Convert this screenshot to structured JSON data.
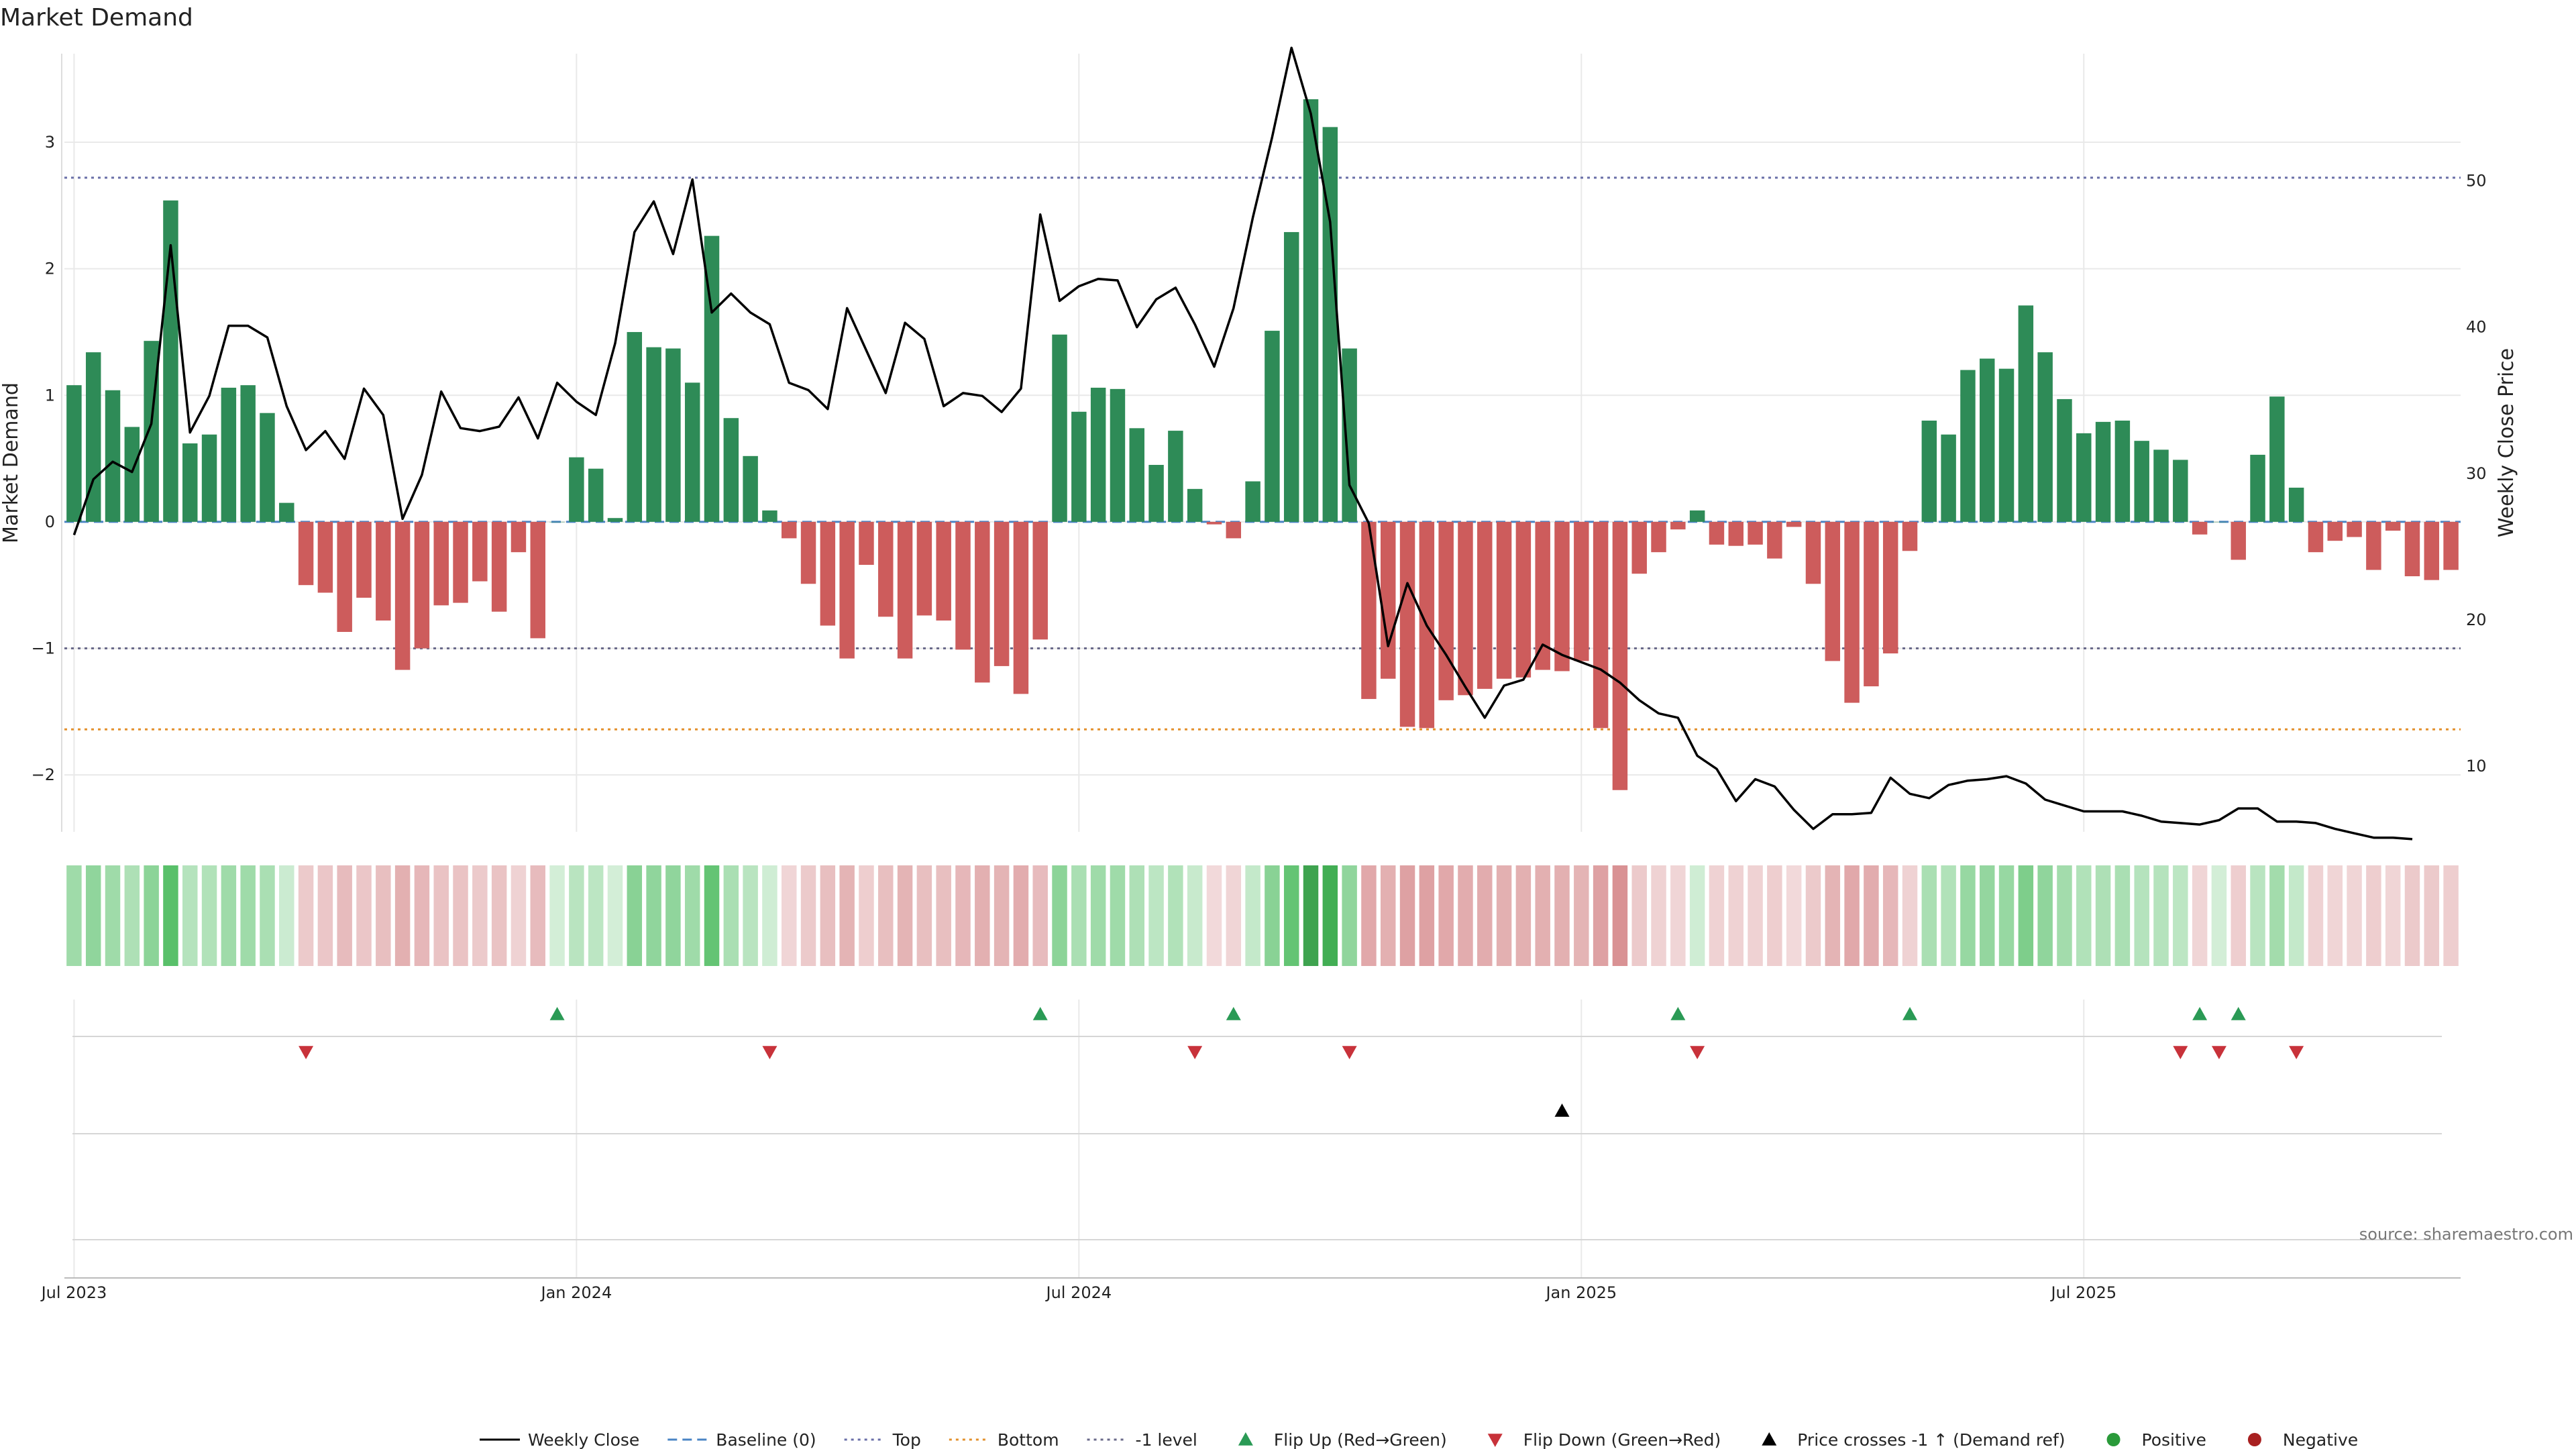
{
  "chart_data": {
    "type": "bar",
    "title": "Market Demand",
    "ylabel": "Market Demand",
    "y2label": "Weekly Close Price",
    "ylim": [
      -2.45,
      3.7
    ],
    "y2lim": [
      5.5,
      58.7
    ],
    "yticks": [
      {
        "v": -2,
        "t": "−2"
      },
      {
        "v": -1,
        "t": "−1"
      },
      {
        "v": 0,
        "t": "0"
      },
      {
        "v": 1,
        "t": "1"
      },
      {
        "v": 2,
        "t": "2"
      },
      {
        "v": 3,
        "t": "3"
      }
    ],
    "y2ticks": [
      {
        "v": 10,
        "t": "10"
      },
      {
        "v": 20,
        "t": "20"
      },
      {
        "v": 30,
        "t": "30"
      },
      {
        "v": 40,
        "t": "40"
      },
      {
        "v": 50,
        "t": "50"
      }
    ],
    "xticks": [
      {
        "i": 0.5,
        "t": "Jul 2023"
      },
      {
        "i": 26.5,
        "t": "Jan 2024"
      },
      {
        "i": 52.5,
        "t": "Jul 2024"
      },
      {
        "i": 78.5,
        "t": "Jan 2025"
      },
      {
        "i": 104.5,
        "t": "Jul 2025"
      }
    ],
    "reference_lines": {
      "top": 2.72,
      "bottom": -1.64,
      "minus_one": -1,
      "baseline": 0
    },
    "series": [
      {
        "name": "Market Demand",
        "values": [
          1.08,
          1.34,
          1.04,
          0.75,
          1.43,
          2.54,
          0.62,
          0.69,
          1.06,
          1.08,
          0.86,
          0.15,
          -0.5,
          -0.56,
          -0.87,
          -0.6,
          -0.78,
          -1.17,
          -1.0,
          -0.66,
          -0.64,
          -0.47,
          -0.71,
          -0.24,
          -0.92,
          0.0,
          0.51,
          0.42,
          0.03,
          1.5,
          1.38,
          1.37,
          1.1,
          2.26,
          0.82,
          0.52,
          0.09,
          -0.13,
          -0.49,
          -0.82,
          -1.08,
          -0.34,
          -0.75,
          -1.08,
          -0.74,
          -0.78,
          -1.01,
          -1.27,
          -1.14,
          -1.36,
          -0.93,
          1.48,
          0.87,
          1.06,
          1.05,
          0.74,
          0.45,
          0.72,
          0.26,
          -0.02,
          -0.13,
          0.32,
          1.51,
          2.29,
          3.34,
          3.12,
          1.37,
          -1.4,
          -1.24,
          -1.62,
          -1.63,
          -1.41,
          -1.37,
          -1.32,
          -1.24,
          -1.23,
          -1.17,
          -1.18,
          -1.1,
          -1.63,
          -2.12,
          -0.41,
          -0.24,
          -0.06,
          0.09,
          -0.18,
          -0.19,
          -0.18,
          -0.29,
          -0.04,
          -0.49,
          -1.1,
          -1.43,
          -1.3,
          -1.04,
          -0.23,
          0.8,
          0.69,
          1.2,
          1.29,
          1.21,
          1.71,
          1.34,
          0.97,
          0.7,
          0.79,
          0.8,
          0.64,
          0.57,
          0.49,
          -0.1,
          0.0,
          -0.3,
          0.53,
          0.99,
          0.27,
          -0.24,
          -0.15,
          -0.12,
          -0.38,
          -0.07,
          -0.43,
          -0.46,
          -0.38
        ]
      },
      {
        "name": "Weekly Close",
        "values": [
          25.8,
          29.6,
          30.8,
          30.1,
          33.4,
          45.6,
          32.8,
          35.3,
          40.1,
          40.1,
          39.3,
          34.6,
          31.6,
          32.9,
          31.0,
          35.8,
          34.0,
          26.9,
          29.9,
          35.6,
          33.1,
          32.9,
          33.2,
          35.2,
          32.4,
          36.2,
          34.9,
          34.0,
          38.9,
          46.5,
          48.6,
          45.0,
          50.1,
          41.0,
          42.3,
          41.0,
          40.2,
          36.2,
          35.7,
          34.4,
          41.3,
          38.4,
          35.5,
          40.3,
          39.2,
          34.6,
          35.5,
          35.3,
          34.2,
          35.8,
          47.7,
          41.8,
          42.8,
          43.3,
          43.2,
          40.0,
          41.9,
          42.7,
          40.2,
          37.3,
          41.3,
          47.5,
          53.0,
          59.1,
          54.6,
          47.2,
          29.2,
          26.6,
          18.2,
          22.5,
          19.6,
          17.6,
          15.4,
          13.3,
          15.5,
          15.9,
          18.3,
          17.6,
          17.1,
          16.6,
          15.7,
          14.5,
          13.6,
          13.3,
          10.7,
          9.8,
          7.6,
          9.1,
          8.6,
          7.0,
          5.7,
          6.7,
          6.7,
          6.8,
          9.2,
          8.1,
          7.8,
          8.7,
          9.0,
          9.1,
          9.3,
          8.8,
          7.7,
          7.3,
          6.9,
          6.9,
          6.9,
          6.6,
          6.2,
          6.1,
          6.0,
          6.3,
          7.1,
          7.1,
          6.2,
          6.2,
          6.1,
          5.7,
          5.4,
          5.1,
          5.1,
          5.0
        ]
      }
    ],
    "flip_up": [
      25,
      50,
      60,
      83,
      95,
      110,
      112
    ],
    "flip_down": [
      12,
      36,
      58,
      66,
      84,
      109,
      111,
      115
    ],
    "price_cross": [
      77
    ],
    "source": "source: sharemaestro.com",
    "legend": [
      {
        "label": "Weekly Close",
        "kind": "line",
        "color": "#000000"
      },
      {
        "label": "Baseline (0)",
        "kind": "dash",
        "color": "#4a84c4"
      },
      {
        "label": "Top",
        "kind": "dot",
        "color": "#6a6fa8"
      },
      {
        "label": "Bottom",
        "kind": "dot",
        "color": "#e3902c"
      },
      {
        "label": "-1 level",
        "kind": "dot",
        "color": "#6a6a8a"
      },
      {
        "label": "Flip Up (Red→Green)",
        "kind": "tri-up",
        "color": "#2a9a55"
      },
      {
        "label": "Flip Down (Green→Red)",
        "kind": "tri-down",
        "color": "#c8323a"
      },
      {
        "label": "Price crosses -1 ↑ (Demand ref)",
        "kind": "tri-up",
        "color": "#000000"
      },
      {
        "label": "Positive",
        "kind": "dot-marker",
        "color": "#2a9a3a"
      },
      {
        "label": "Negative",
        "kind": "dot-marker",
        "color": "#a82020"
      }
    ],
    "colors": {
      "positive": "#2e8b57",
      "negative": "#cd5c5c",
      "top": "#6a6fa8",
      "bottom": "#e3902c",
      "minus_one": "#6a6a8a",
      "baseline": "#4a84c4"
    }
  }
}
